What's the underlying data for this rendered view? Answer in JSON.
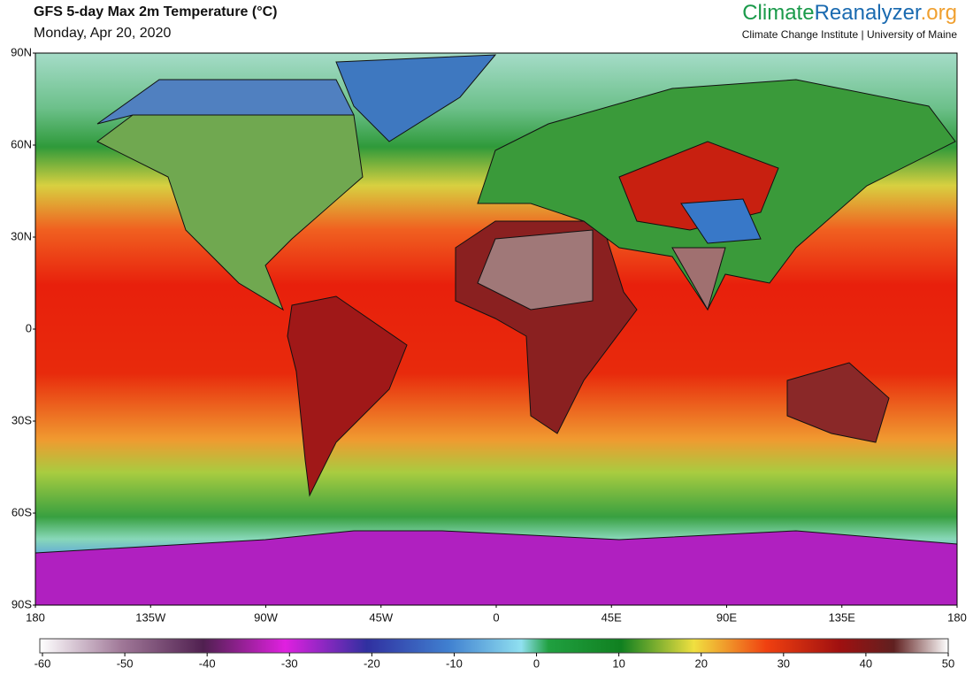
{
  "header": {
    "title": "GFS 5-day Max 2m Temperature (°C)",
    "date": "Monday, Apr 20, 2020"
  },
  "brand": {
    "name_part1": "Climate",
    "name_part2": "Reanalyzer",
    "name_part3": ".org",
    "subtitle": "Climate Change Institute | University of Maine"
  },
  "map": {
    "latlim": [
      -90,
      90
    ],
    "lonlim": [
      -180,
      180
    ],
    "lat_ticks": [
      {
        "value": 90,
        "label": "90N"
      },
      {
        "value": 60,
        "label": "60N"
      },
      {
        "value": 30,
        "label": "30N"
      },
      0,
      {
        "value": -30,
        "label": "30S"
      },
      {
        "value": -60,
        "label": "60S"
      },
      {
        "value": -90,
        "label": "90S"
      }
    ],
    "lon_ticks": [
      {
        "value": -180,
        "label": "180"
      },
      {
        "value": -135,
        "label": "135W"
      },
      {
        "value": -90,
        "label": "90W"
      },
      {
        "value": -45,
        "label": "45W"
      },
      0,
      {
        "value": 45,
        "label": "45E"
      },
      {
        "value": 90,
        "label": "90E"
      },
      {
        "value": 135,
        "label": "135E"
      },
      {
        "value": 180,
        "label": "180"
      }
    ]
  },
  "colorbar": {
    "range": [
      -60,
      50
    ],
    "ticks": [
      -60,
      -50,
      -40,
      -30,
      -20,
      -10,
      0,
      10,
      20,
      30,
      40,
      50
    ]
  }
}
